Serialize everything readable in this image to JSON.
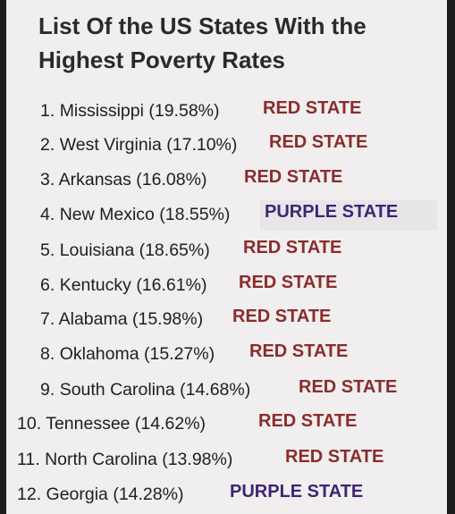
{
  "title": "List Of the US States With the Highest Poverty Rates",
  "items": [
    {
      "num": "1.",
      "name": "Mississippi (19.58%)",
      "tag": "RED STATE",
      "color": "red"
    },
    {
      "num": "2.",
      "name": "West Virginia (17.10%)",
      "tag": "RED STATE",
      "color": "red"
    },
    {
      "num": "3.",
      "name": "Arkansas (16.08%)",
      "tag": "RED STATE",
      "color": "red"
    },
    {
      "num": "4.",
      "name": "New Mexico (18.55%)",
      "tag": "PURPLE STATE",
      "color": "purple"
    },
    {
      "num": "5.",
      "name": "Louisiana (18.65%)",
      "tag": "RED STATE",
      "color": "red"
    },
    {
      "num": "6.",
      "name": "Kentucky (16.61%)",
      "tag": "RED STATE",
      "color": "red"
    },
    {
      "num": "7.",
      "name": "Alabama (15.98%)",
      "tag": "RED STATE",
      "color": "red"
    },
    {
      "num": "8.",
      "name": "Oklahoma (15.27%)",
      "tag": "RED STATE",
      "color": "red"
    },
    {
      "num": "9.",
      "name": "South Carolina (14.68%)",
      "tag": "RED STATE",
      "color": "red"
    },
    {
      "num": "10.",
      "name": "Tennessee (14.62%)",
      "tag": "RED STATE",
      "color": "red"
    },
    {
      "num": "11.",
      "name": "North Carolina (13.98%)",
      "tag": "RED STATE",
      "color": "red"
    },
    {
      "num": "12.",
      "name": "Georgia (14.28%)",
      "tag": "PURPLE STATE",
      "color": "purple"
    }
  ],
  "colors": {
    "red": "#8a2c2c",
    "purple": "#3f2476"
  }
}
